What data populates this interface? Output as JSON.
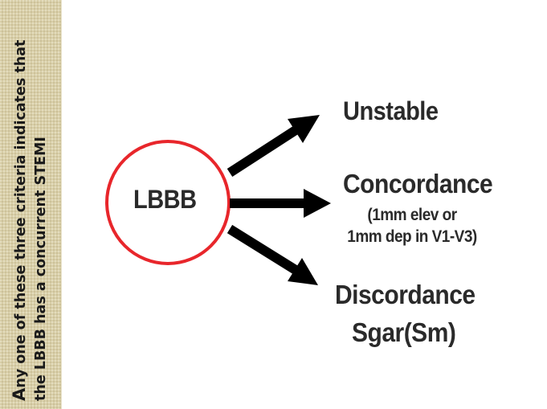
{
  "sidebar": {
    "line1_initial": "A",
    "line1_rest": "ny one of these three criteria indicates that",
    "line2_prefix": "the ",
    "line2_bold1": "LBBB",
    "line2_mid": " has a concurrent ",
    "line2_bold2": "STEMI"
  },
  "diagram": {
    "center_node": "LBBB",
    "criteria": [
      {
        "title": "Unstable"
      },
      {
        "title": "Concordance",
        "detail_line1": "(1mm elev or",
        "detail_line2": "1mm dep in V1-V3)"
      },
      {
        "title": "Discordance",
        "title_line2": "Sgar(Sm)"
      }
    ],
    "colors": {
      "circle_stroke": "#e8262b",
      "arrow": "#000000",
      "text": "#2a2a2a",
      "sidebar_bg": "#d9cfa8"
    }
  }
}
